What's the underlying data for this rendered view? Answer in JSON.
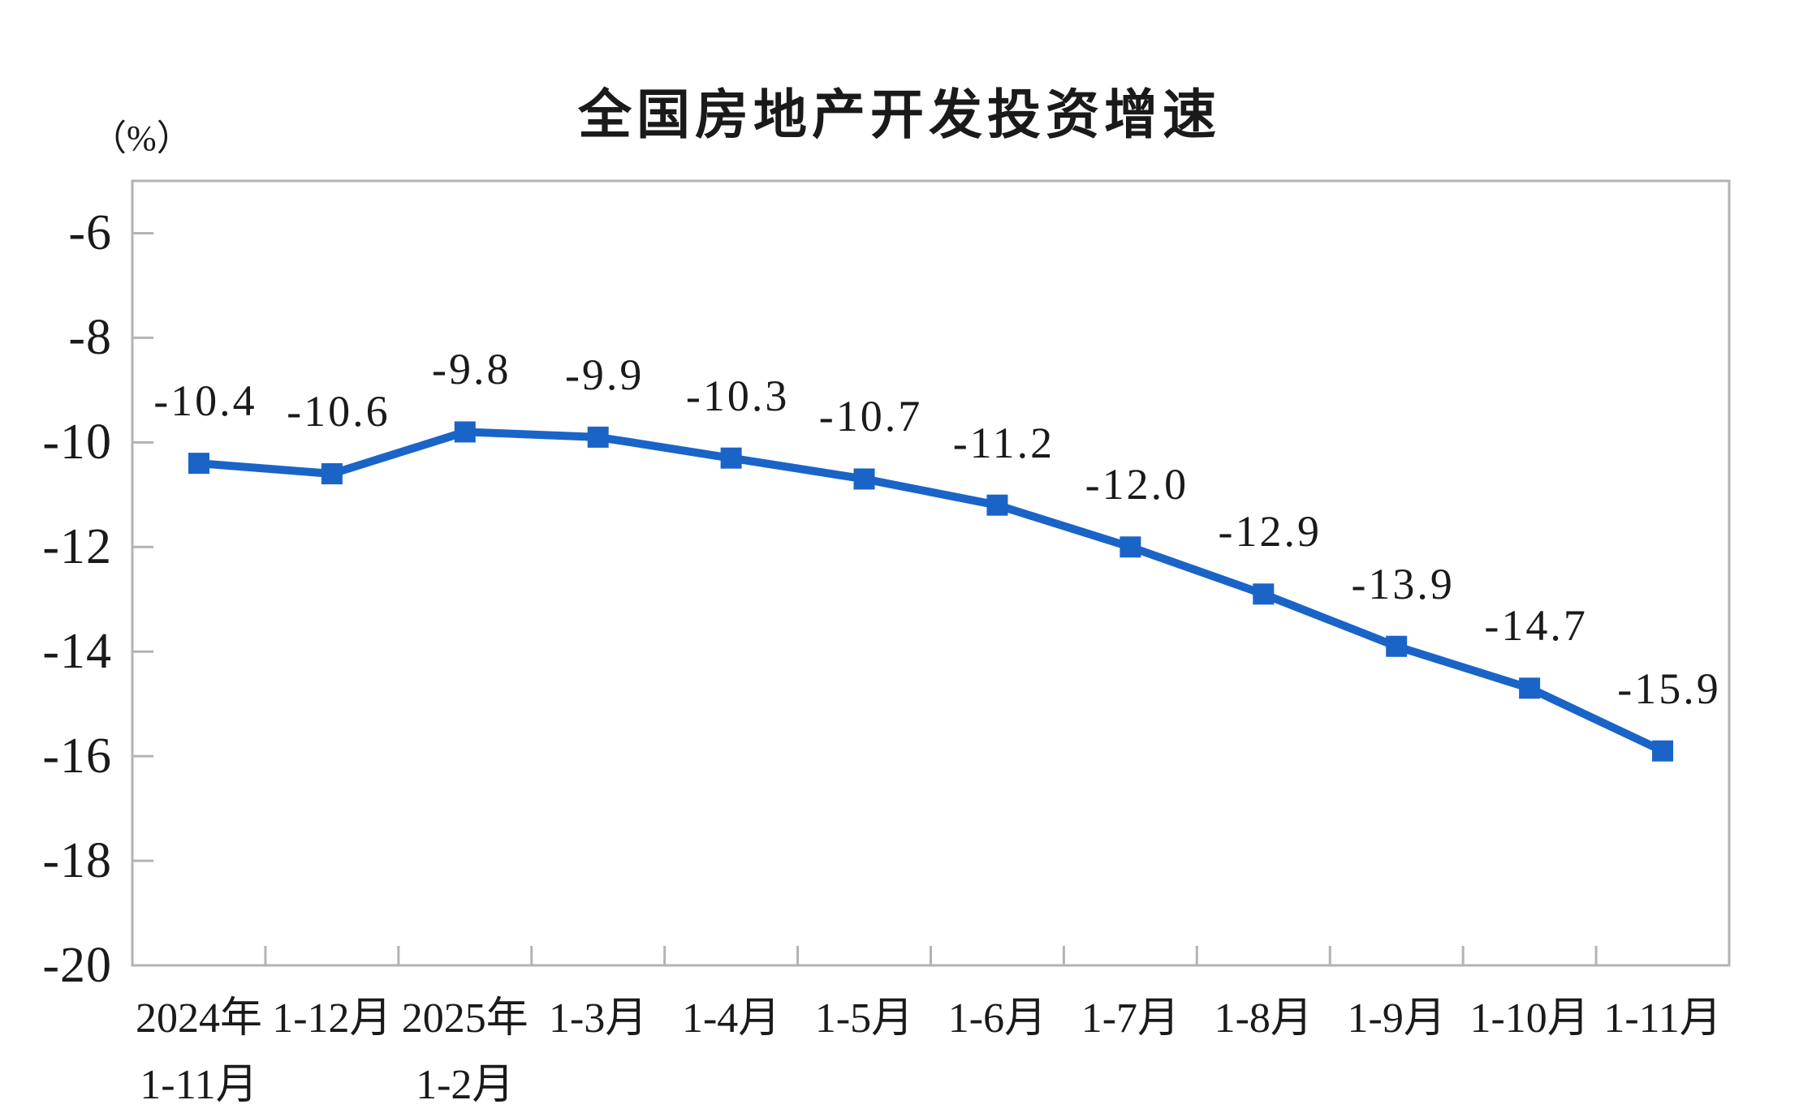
{
  "page": {
    "background_color": "#ffffff",
    "text_color": "#1a1a1a"
  },
  "chart_data": {
    "type": "line",
    "title": "全国房地产开发投资增速",
    "unit_label": "（%）",
    "categories": [
      [
        "2024年",
        "1-11月"
      ],
      [
        "1-12月"
      ],
      [
        "2025年",
        "1-2月"
      ],
      [
        "1-3月"
      ],
      [
        "1-4月"
      ],
      [
        "1-5月"
      ],
      [
        "1-6月"
      ],
      [
        "1-7月"
      ],
      [
        "1-8月"
      ],
      [
        "1-9月"
      ],
      [
        "1-10月"
      ],
      [
        "1-11月"
      ]
    ],
    "series": [
      {
        "name": "全国房地产开发投资增速",
        "values": [
          -10.4,
          -10.6,
          -9.8,
          -9.9,
          -10.3,
          -10.7,
          -11.2,
          -12.0,
          -12.9,
          -13.9,
          -14.7,
          -15.9
        ],
        "data_labels": [
          "-10.4",
          "-10.6",
          "-9.8",
          "-9.9",
          "-10.3",
          "-10.7",
          "-11.2",
          "-12.0",
          "-12.9",
          "-13.9",
          "-14.7",
          "-15.9"
        ]
      }
    ],
    "ylim": [
      -20,
      -5
    ],
    "yticks": [
      -6,
      -8,
      -10,
      -12,
      -14,
      -16,
      -18,
      -20
    ],
    "ytick_labels": [
      "-6",
      "-8",
      "-10",
      "-12",
      "-14",
      "-16",
      "-18",
      "-20"
    ],
    "xlabel": "",
    "ylabel": "（%）",
    "grid": false,
    "legend_position": "none",
    "marker_shape": "square",
    "series_color": "#1a64c8",
    "axis_color": "#b3b3b3",
    "label_color": "#1a1a1a"
  }
}
